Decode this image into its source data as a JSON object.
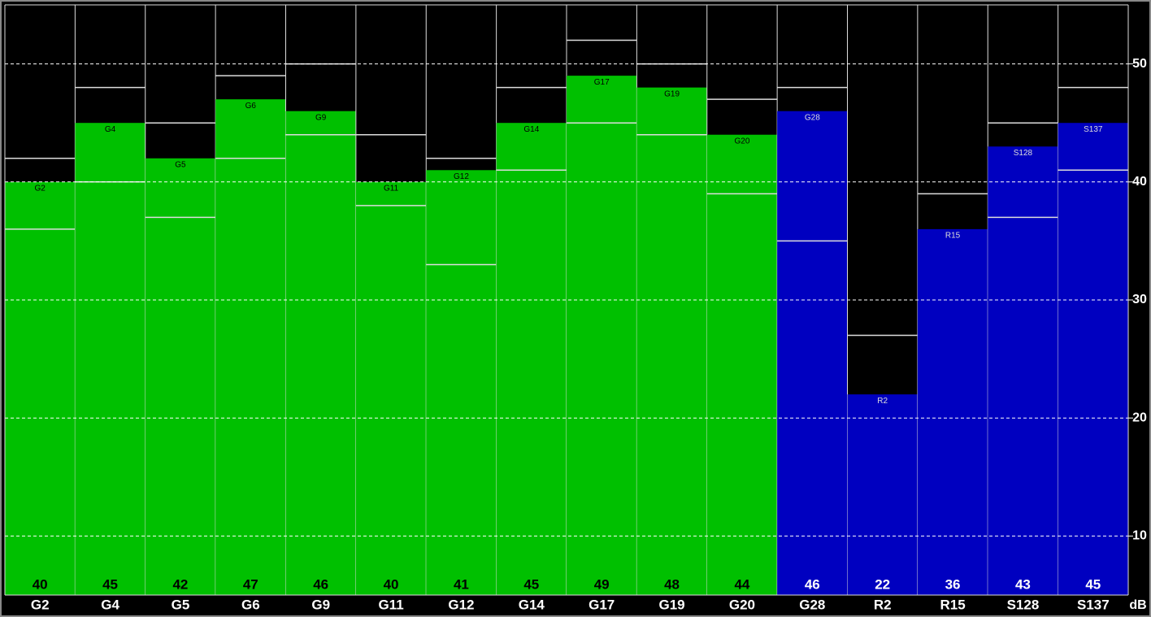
{
  "chart_data": {
    "type": "bar",
    "categories": [
      "G2",
      "G4",
      "G5",
      "G6",
      "G9",
      "G11",
      "G12",
      "G14",
      "G17",
      "G19",
      "G20",
      "G28",
      "R2",
      "R15",
      "S128",
      "S137"
    ],
    "values": [
      40,
      45,
      42,
      47,
      46,
      40,
      41,
      45,
      49,
      48,
      44,
      46,
      22,
      36,
      43,
      45
    ],
    "bar_colors": [
      "#00c000",
      "#00c000",
      "#00c000",
      "#00c000",
      "#00c000",
      "#00c000",
      "#00c000",
      "#00c000",
      "#00c000",
      "#00c000",
      "#00c000",
      "#0000c0",
      "#0000c0",
      "#0000c0",
      "#0000c0",
      "#0000c0"
    ],
    "low_marks": [
      36,
      40,
      37,
      42,
      44,
      38,
      33,
      41,
      45,
      44,
      39,
      35,
      null,
      null,
      37,
      41
    ],
    "high_marks": [
      42,
      48,
      45,
      49,
      50,
      44,
      42,
      48,
      52,
      50,
      47,
      48,
      27,
      39,
      45,
      48
    ],
    "y_label": "dB",
    "ylim": [
      5,
      55
    ],
    "yticks": [
      10,
      20,
      30,
      40,
      50
    ],
    "grid": true
  }
}
